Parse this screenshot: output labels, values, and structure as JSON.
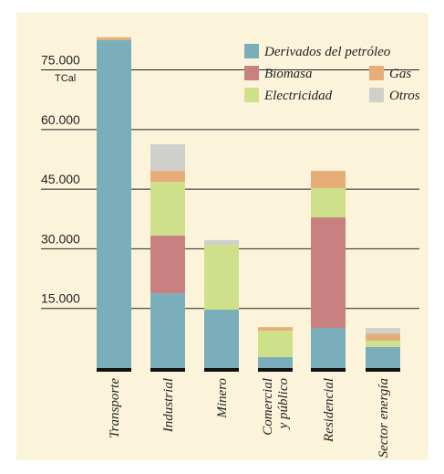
{
  "chart_data": {
    "type": "stacked_bar",
    "categories": [
      "Transporte",
      "Industrial",
      "Minero",
      "Comercial y público",
      "Residencial",
      "Sector energía"
    ],
    "series": [
      {
        "name": "Derivados del petróleo",
        "color": "#7aaebb",
        "values": [
          82500,
          18800,
          14700,
          2750,
          10100,
          5300
        ]
      },
      {
        "name": "Biomasa",
        "color": "#c98080",
        "values": [
          0,
          14500,
          0,
          0,
          27800,
          0
        ]
      },
      {
        "name": "Electricidad",
        "color": "#cfe08a",
        "values": [
          0,
          13500,
          16300,
          6650,
          7350,
          1600
        ]
      },
      {
        "name": "Gas",
        "color": "#e7ad78",
        "values": [
          700,
          2800,
          0,
          900,
          4350,
          1800
        ]
      },
      {
        "name": "Otros",
        "color": "#cfd0cc",
        "values": [
          0,
          6700,
          1200,
          0,
          0,
          1400
        ]
      }
    ],
    "y_unit": "TCal",
    "ylim": [
      0,
      85000
    ],
    "yticks": [
      {
        "value": 15000,
        "label": "15.000"
      },
      {
        "value": 30000,
        "label": "30.000"
      },
      {
        "value": 45000,
        "label": "45.000"
      },
      {
        "value": 60000,
        "label": "60.000"
      },
      {
        "value": 75000,
        "label": "75.000"
      }
    ],
    "grid": true
  }
}
